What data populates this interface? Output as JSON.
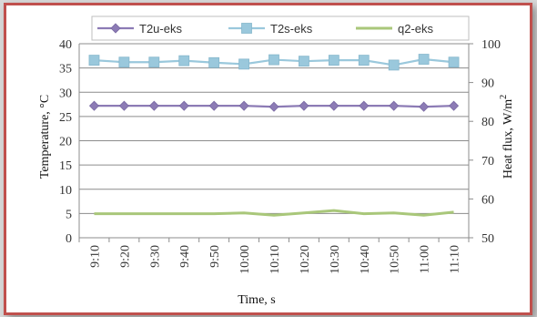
{
  "chart_data": {
    "type": "line",
    "x": [
      "9:10",
      "9:20",
      "9:30",
      "9:40",
      "9:50",
      "10:00",
      "10:10",
      "10:20",
      "10:30",
      "10:40",
      "10:50",
      "11:00",
      "11:10"
    ],
    "xlabel": "Time, s",
    "ylabel_left": "Temperature, °C",
    "ylabel_right_prefix": "Heat flux,  W/m",
    "ylabel_right_sup": "2",
    "ylim_left": [
      0,
      40
    ],
    "yticks_left": [
      0,
      5,
      10,
      15,
      20,
      25,
      30,
      35,
      40
    ],
    "ylim_right": [
      50,
      100
    ],
    "yticks_right": [
      50,
      60,
      70,
      80,
      90,
      100
    ],
    "grid": true,
    "legend_position": "top",
    "series": [
      {
        "name": "T2u-eks",
        "axis": "left",
        "marker": "diamond",
        "color": "#8c7bb5",
        "values": [
          27.2,
          27.2,
          27.2,
          27.2,
          27.2,
          27.2,
          27.0,
          27.2,
          27.2,
          27.2,
          27.2,
          27.0,
          27.2
        ]
      },
      {
        "name": "T2s-eks",
        "axis": "left",
        "marker": "square",
        "color": "#9ac8dc",
        "values": [
          36.6,
          36.2,
          36.2,
          36.5,
          36.1,
          35.8,
          36.7,
          36.4,
          36.6,
          36.6,
          35.6,
          36.8,
          36.2
        ]
      },
      {
        "name": "q2-eks",
        "axis": "right",
        "marker": "none",
        "color": "#a9c77a",
        "values": [
          56.2,
          56.2,
          56.2,
          56.2,
          56.2,
          56.4,
          55.8,
          56.4,
          57.0,
          56.2,
          56.4,
          55.8,
          56.6
        ]
      }
    ]
  }
}
